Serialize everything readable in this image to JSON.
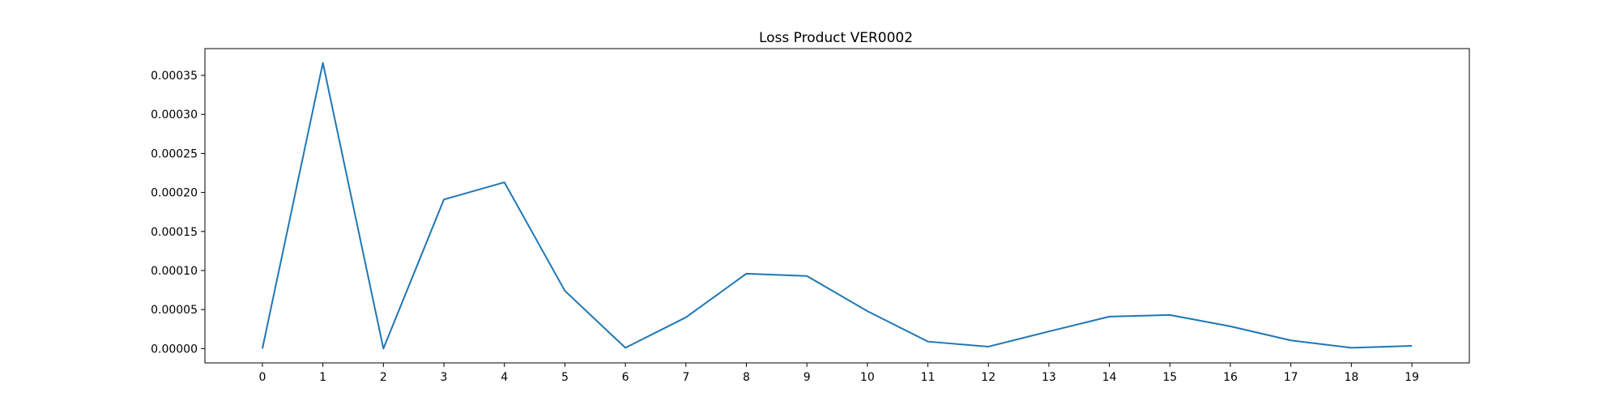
{
  "chart_data": {
    "type": "line",
    "title": "Loss Product VER0002",
    "xlabel": "",
    "ylabel": "",
    "x": [
      0,
      1,
      2,
      3,
      4,
      5,
      6,
      7,
      8,
      9,
      10,
      11,
      12,
      13,
      14,
      15,
      16,
      17,
      18,
      19
    ],
    "series": [
      {
        "name": "",
        "color": "#1f77b4",
        "values": [
          0.0,
          0.000366,
          0.0,
          0.000191,
          0.000213,
          7.4e-05,
          1e-06,
          4e-05,
          9.6e-05,
          9.3e-05,
          4.8e-05,
          9e-06,
          2.5e-06,
          2.2e-05,
          4.1e-05,
          4.3e-05,
          2.85e-05,
          1.05e-05,
          1e-06,
          3.5e-06
        ]
      }
    ],
    "xticks": [
      "0",
      "1",
      "2",
      "3",
      "4",
      "5",
      "6",
      "7",
      "8",
      "9",
      "10",
      "11",
      "12",
      "13",
      "14",
      "15",
      "16",
      "17",
      "18",
      "19"
    ],
    "yticks": [
      "0.00000",
      "0.00005",
      "0.00010",
      "0.00015",
      "0.00020",
      "0.00025",
      "0.00030",
      "0.00035"
    ],
    "ytick_values": [
      0,
      5e-05,
      0.0001,
      0.00015,
      0.0002,
      0.00025,
      0.0003,
      0.00035
    ],
    "xlim": [
      -0.95,
      19.95
    ],
    "ylim": [
      -1.83e-05,
      0.0003843
    ],
    "grid": false,
    "legend": "none"
  }
}
